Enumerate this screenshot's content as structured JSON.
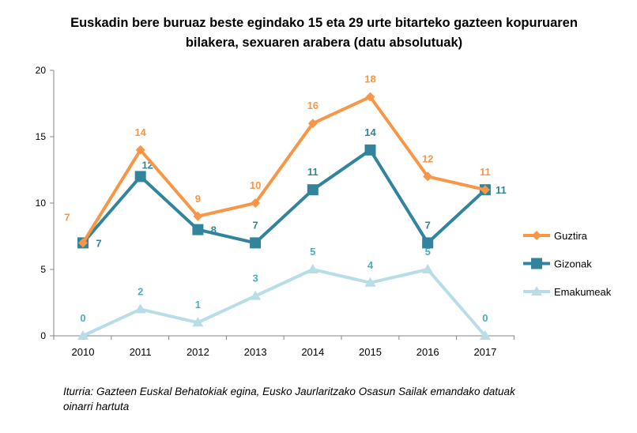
{
  "chart_data": {
    "type": "line",
    "title": [
      "Euskadin bere buruaz beste egindako 15 eta 29 urte bitarteko gazteen kopuruaren",
      "bilakera, sexuaren arabera (datu absolutuak)"
    ],
    "categories": [
      "2010",
      "2011",
      "2012",
      "2013",
      "2014",
      "2015",
      "2016",
      "2017"
    ],
    "ylim": [
      0,
      20
    ],
    "yticks": [
      "0",
      "5",
      "10",
      "15",
      "20"
    ],
    "grid": false,
    "legend": "right",
    "series": [
      {
        "name": "Guztira",
        "values": [
          7,
          14,
          9,
          10,
          16,
          18,
          12,
          11
        ],
        "color": "#F79646",
        "label_color": "#F79646",
        "marker": "diamond"
      },
      {
        "name": "Gizonak",
        "values": [
          7,
          12,
          8,
          7,
          11,
          14,
          7,
          11
        ],
        "color": "#31849B",
        "label_color": "#31849B",
        "marker": "square"
      },
      {
        "name": "Emakumeak",
        "values": [
          0,
          2,
          1,
          3,
          5,
          4,
          5,
          0
        ],
        "color": "#B7DEE8",
        "label_color": "#4BACC6",
        "marker": "triangle"
      }
    ],
    "source": [
      "Iturria: Gazteen Euskal Behatokiak egina, Eusko Jaurlaritzako Osasun Sailak emandako datuak",
      "oinarri hartuta"
    ]
  }
}
